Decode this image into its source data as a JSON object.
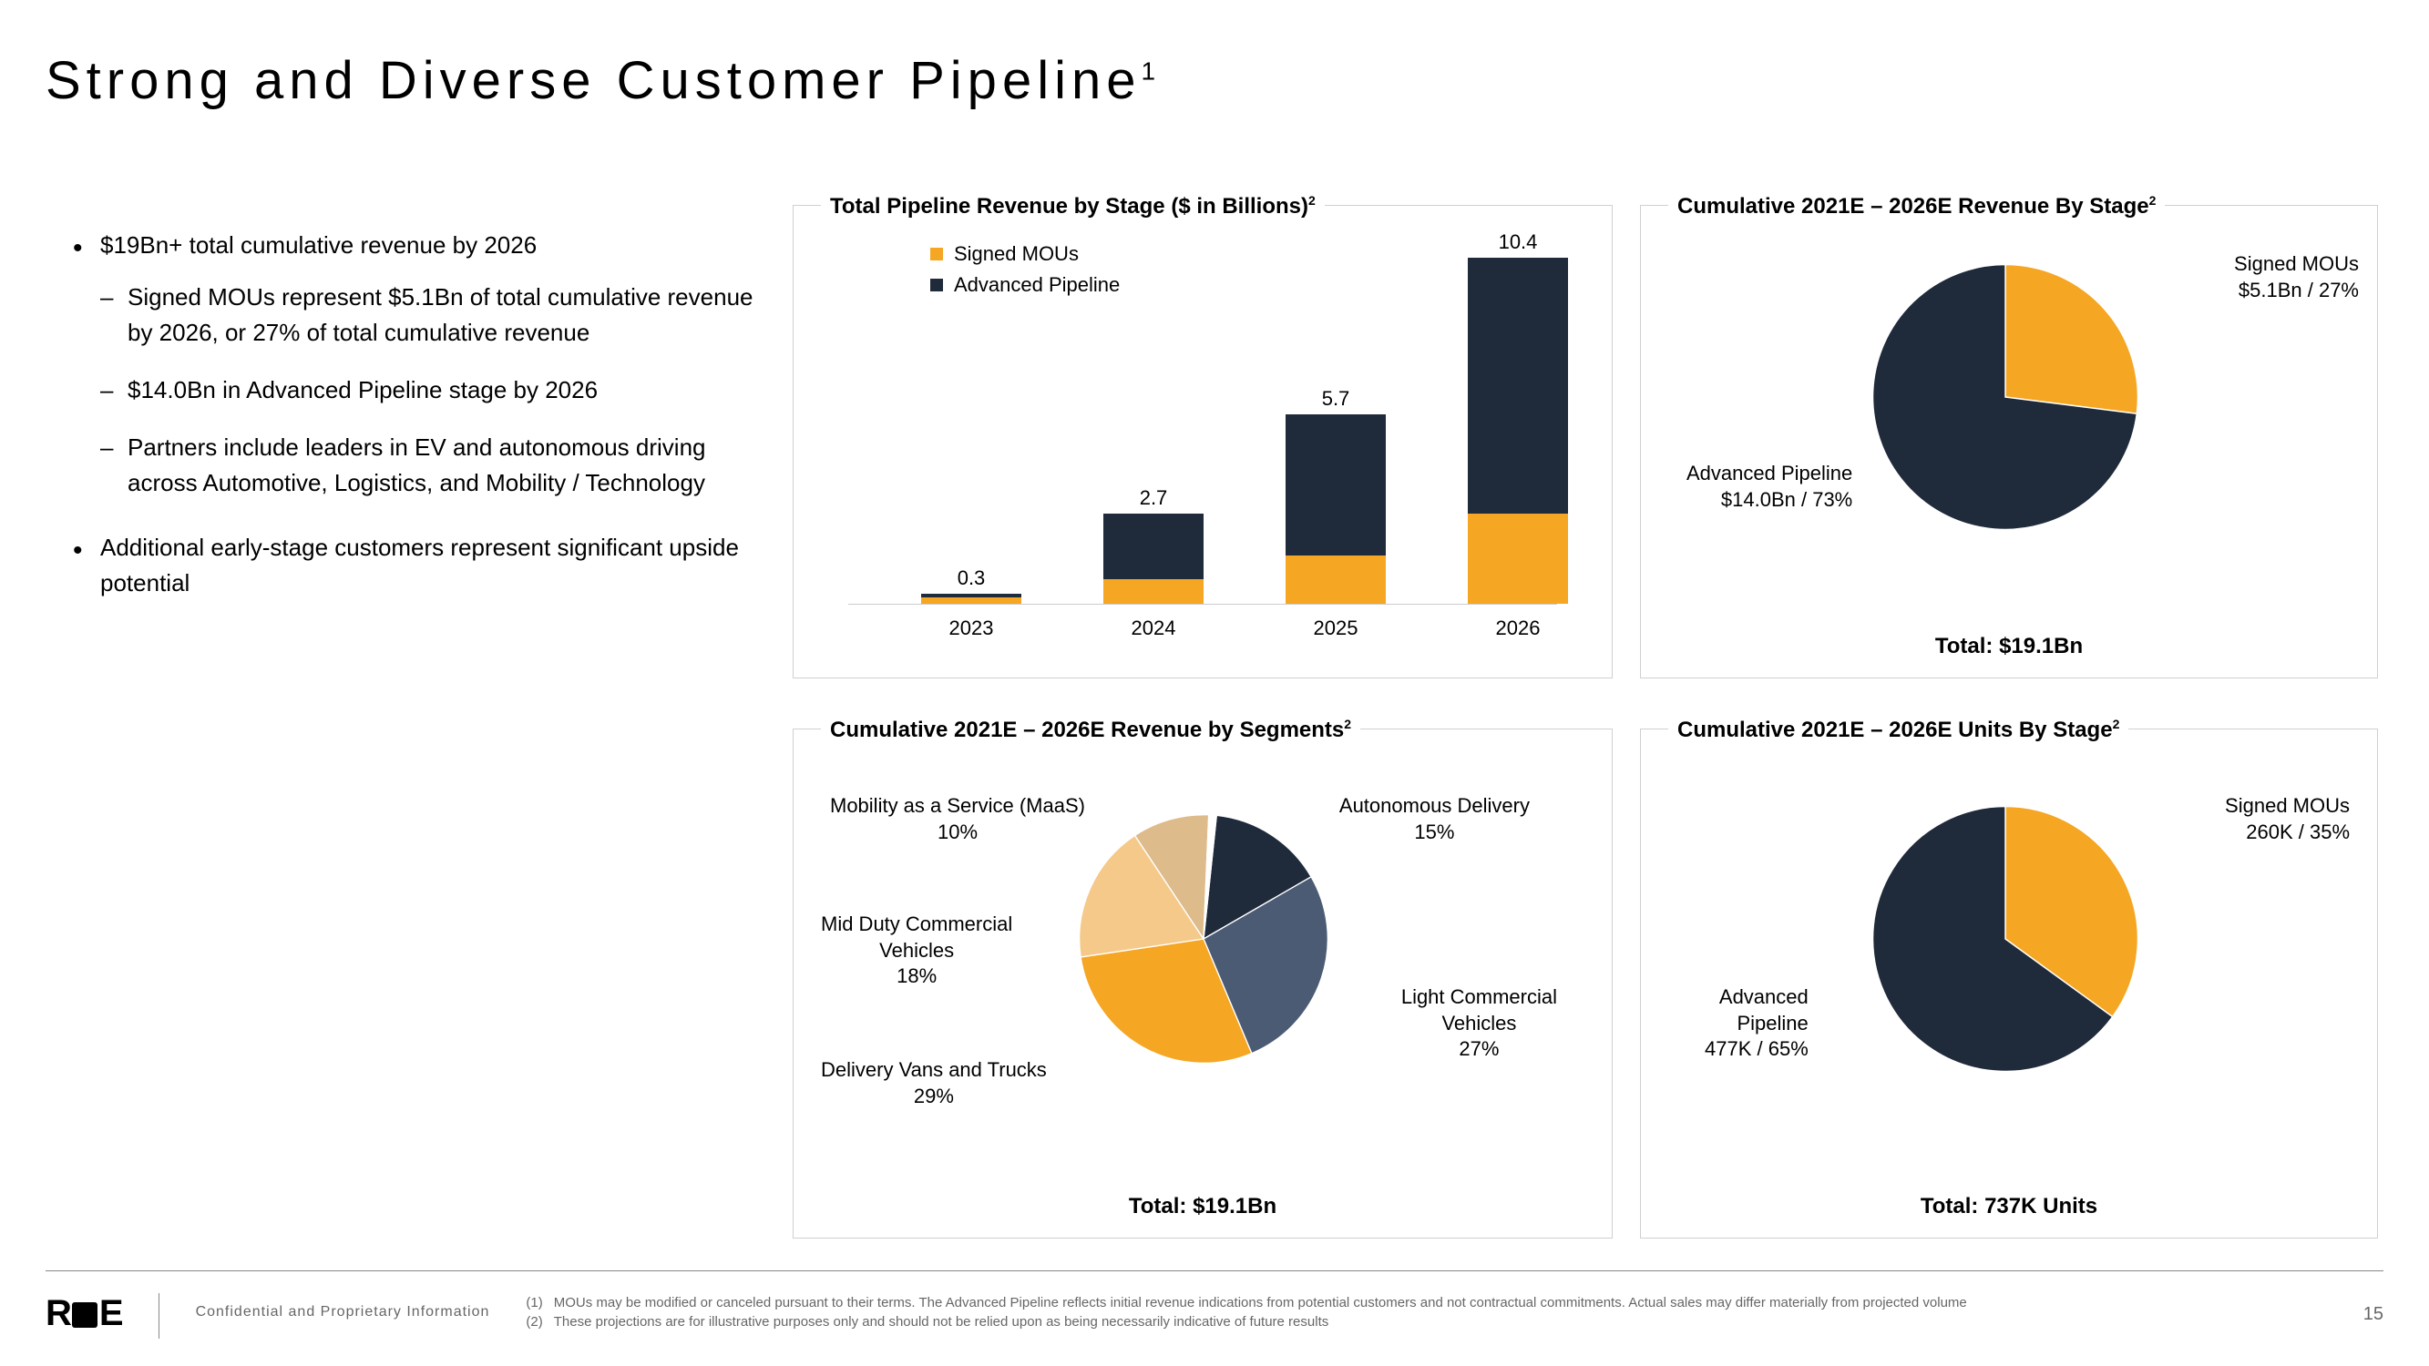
{
  "title": "Strong and Diverse Customer Pipeline",
  "title_sup": "1",
  "bullets": {
    "b1": "$19Bn+ total cumulative revenue by 2026",
    "b1_1": "Signed MOUs represent $5.1Bn of total cumulative revenue by 2026, or 27% of total cumulative revenue",
    "b1_2": "$14.0Bn in Advanced Pipeline stage by 2026",
    "b1_3": "Partners include leaders in EV and autonomous driving across Automotive, Logistics, and Mobility / Technology",
    "b2": "Additional early-stage customers represent significant upside potential"
  },
  "colors": {
    "orange": "#f5a623",
    "navy": "#1f2a3a",
    "slate": "#4a5b73",
    "peach": "#f5c98a",
    "tan": "#ddbb8a"
  },
  "bar_chart": {
    "title": "Total Pipeline Revenue by Stage ($ in Billions)",
    "sup": "2",
    "legend": {
      "a": "Signed MOUs",
      "b": "Advanced Pipeline"
    },
    "ymax": 10.4,
    "categories": [
      "2023",
      "2024",
      "2025",
      "2026"
    ],
    "totals": [
      "0.3",
      "2.7",
      "5.7",
      "10.4"
    ],
    "signed": [
      0.2,
      0.75,
      1.45,
      2.7
    ],
    "advanced": [
      0.1,
      1.95,
      4.25,
      7.7
    ]
  },
  "pie_revenue_stage": {
    "title": "Cumulative 2021E – 2026E Revenue By Stage",
    "sup": "2",
    "total": "Total: $19.1Bn",
    "slices": [
      {
        "name": "Signed MOUs",
        "value": 27,
        "color": "#f5a623",
        "label": "Signed MOUs\n$5.1Bn / 27%"
      },
      {
        "name": "Advanced Pipeline",
        "value": 73,
        "color": "#1f2a3a",
        "label": "Advanced Pipeline\n$14.0Bn / 73%"
      }
    ],
    "label_a": "Signed MOUs",
    "label_a2": "$5.1Bn / 27%",
    "label_b": "Advanced Pipeline",
    "label_b2": "$14.0Bn / 73%"
  },
  "pie_segments": {
    "title": "Cumulative 2021E – 2026E Revenue by Segments",
    "sup": "2",
    "total": "Total: $19.1Bn",
    "l1a": "Mobility as a Service (MaaS)",
    "l1b": "10%",
    "l2a": "Autonomous Delivery",
    "l2b": "15%",
    "l3a": "Light Commercial",
    "l3b": "Vehicles",
    "l3c": "27%",
    "l4a": "Delivery Vans and Trucks",
    "l4b": "29%",
    "l5a": "Mid Duty Commercial",
    "l5b": "Vehicles",
    "l5c": "18%"
  },
  "pie_units": {
    "title": "Cumulative 2021E – 2026E Units By Stage",
    "sup": "2",
    "total": "Total: 737K Units",
    "label_a": "Signed MOUs",
    "label_a2": "260K / 35%",
    "label_b": "Advanced",
    "label_b2": "Pipeline",
    "label_b3": "477K / 65%"
  },
  "footer": {
    "confidential": "Confidential and Proprietary Information",
    "fn1_num": "(1)",
    "fn1": "MOUs may be modified or canceled pursuant to their terms. The Advanced Pipeline reflects initial revenue indications from potential customers and not contractual commitments. Actual sales may differ materially from projected volume",
    "fn2_num": "(2)",
    "fn2": "These projections are for illustrative purposes only and should not be relied upon as being necessarily indicative of future results",
    "page": "15",
    "logo": "R■E"
  }
}
